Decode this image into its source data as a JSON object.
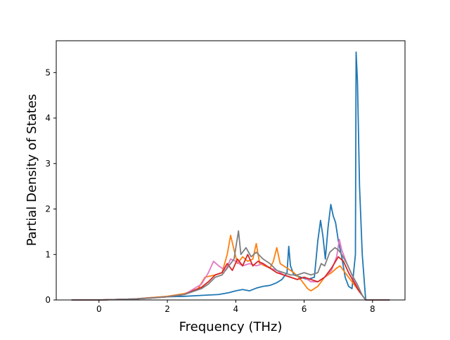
{
  "chart_data": {
    "type": "line",
    "title": "",
    "xlabel": "Frequency (THz)",
    "ylabel": "Partial Density of States",
    "xlim": [
      -1.25,
      8.95
    ],
    "ylim": [
      0,
      5.7
    ],
    "x_ticks": [
      0,
      2,
      4,
      6,
      8
    ],
    "y_ticks": [
      0,
      1,
      2,
      3,
      4,
      5
    ],
    "x_tick_labels": [
      "0",
      "2",
      "4",
      "6",
      "8"
    ],
    "y_tick_labels": [
      "0",
      "1",
      "2",
      "3",
      "4",
      "5"
    ],
    "grid": false,
    "legend": "none",
    "series": [
      {
        "color": "#1f77b4",
        "points": [
          [
            -0.8,
            0
          ],
          [
            0,
            0
          ],
          [
            1,
            0.02
          ],
          [
            1.5,
            0.05
          ],
          [
            2,
            0.07
          ],
          [
            2.5,
            0.08
          ],
          [
            3,
            0.1
          ],
          [
            3.5,
            0.12
          ],
          [
            3.8,
            0.16
          ],
          [
            4,
            0.2
          ],
          [
            4.2,
            0.23
          ],
          [
            4.4,
            0.2
          ],
          [
            4.6,
            0.26
          ],
          [
            4.8,
            0.3
          ],
          [
            5,
            0.32
          ],
          [
            5.2,
            0.38
          ],
          [
            5.35,
            0.45
          ],
          [
            5.5,
            0.6
          ],
          [
            5.55,
            1.18
          ],
          [
            5.6,
            0.75
          ],
          [
            5.7,
            0.55
          ],
          [
            5.9,
            0.5
          ],
          [
            6.1,
            0.45
          ],
          [
            6.3,
            0.5
          ],
          [
            6.4,
            1.3
          ],
          [
            6.48,
            1.75
          ],
          [
            6.55,
            1.4
          ],
          [
            6.62,
            0.9
          ],
          [
            6.7,
            1.6
          ],
          [
            6.78,
            2.1
          ],
          [
            6.85,
            1.85
          ],
          [
            6.92,
            1.7
          ],
          [
            7,
            1.3
          ],
          [
            7.1,
            0.95
          ],
          [
            7.2,
            0.5
          ],
          [
            7.3,
            0.3
          ],
          [
            7.4,
            0.25
          ],
          [
            7.5,
            1.0
          ],
          [
            7.52,
            5.45
          ],
          [
            7.56,
            4.8
          ],
          [
            7.62,
            2.5
          ],
          [
            7.7,
            1.0
          ],
          [
            7.8,
            0
          ],
          [
            8.5,
            0
          ]
        ]
      },
      {
        "color": "#ff7f0e",
        "points": [
          [
            -0.8,
            0
          ],
          [
            0,
            0
          ],
          [
            1,
            0.02
          ],
          [
            1.5,
            0.05
          ],
          [
            2,
            0.08
          ],
          [
            2.5,
            0.14
          ],
          [
            2.9,
            0.25
          ],
          [
            3.1,
            0.5
          ],
          [
            3.4,
            0.55
          ],
          [
            3.6,
            0.6
          ],
          [
            3.75,
            1.0
          ],
          [
            3.85,
            1.42
          ],
          [
            3.95,
            1.1
          ],
          [
            4.05,
            0.8
          ],
          [
            4.2,
            0.95
          ],
          [
            4.35,
            0.85
          ],
          [
            4.5,
            0.9
          ],
          [
            4.6,
            1.24
          ],
          [
            4.7,
            0.8
          ],
          [
            4.85,
            0.75
          ],
          [
            5,
            0.7
          ],
          [
            5.1,
            0.85
          ],
          [
            5.2,
            1.15
          ],
          [
            5.3,
            0.8
          ],
          [
            5.5,
            0.7
          ],
          [
            5.7,
            0.6
          ],
          [
            5.9,
            0.45
          ],
          [
            6,
            0.35
          ],
          [
            6.1,
            0.25
          ],
          [
            6.2,
            0.2
          ],
          [
            6.4,
            0.3
          ],
          [
            6.6,
            0.5
          ],
          [
            6.8,
            0.6
          ],
          [
            6.95,
            0.7
          ],
          [
            7.05,
            0.75
          ],
          [
            7.2,
            0.6
          ],
          [
            7.35,
            0.45
          ],
          [
            7.5,
            0.3
          ],
          [
            7.6,
            0.2
          ],
          [
            7.8,
            0
          ],
          [
            8.5,
            0
          ]
        ]
      },
      {
        "color": "#e377c2",
        "points": [
          [
            -0.8,
            0
          ],
          [
            0,
            0
          ],
          [
            1,
            0.02
          ],
          [
            1.5,
            0.04
          ],
          [
            2,
            0.07
          ],
          [
            2.5,
            0.12
          ],
          [
            3,
            0.35
          ],
          [
            3.2,
            0.6
          ],
          [
            3.35,
            0.85
          ],
          [
            3.5,
            0.75
          ],
          [
            3.7,
            0.65
          ],
          [
            3.85,
            0.9
          ],
          [
            4,
            0.85
          ],
          [
            4.2,
            0.75
          ],
          [
            4.4,
            0.8
          ],
          [
            4.6,
            0.75
          ],
          [
            4.8,
            0.8
          ],
          [
            5,
            0.7
          ],
          [
            5.2,
            0.65
          ],
          [
            5.4,
            0.55
          ],
          [
            5.6,
            0.5
          ],
          [
            5.8,
            0.45
          ],
          [
            6,
            0.5
          ],
          [
            6.2,
            0.4
          ],
          [
            6.4,
            0.4
          ],
          [
            6.6,
            0.5
          ],
          [
            6.8,
            0.65
          ],
          [
            6.95,
            0.95
          ],
          [
            7.03,
            1.33
          ],
          [
            7.1,
            1.1
          ],
          [
            7.25,
            0.8
          ],
          [
            7.4,
            0.55
          ],
          [
            7.55,
            0.3
          ],
          [
            7.7,
            0.1
          ],
          [
            7.8,
            0
          ],
          [
            8.5,
            0
          ]
        ]
      },
      {
        "color": "#d62728",
        "points": [
          [
            -0.8,
            0
          ],
          [
            0,
            0
          ],
          [
            1,
            0.02
          ],
          [
            1.5,
            0.04
          ],
          [
            2,
            0.07
          ],
          [
            2.5,
            0.12
          ],
          [
            3,
            0.28
          ],
          [
            3.2,
            0.4
          ],
          [
            3.4,
            0.55
          ],
          [
            3.6,
            0.6
          ],
          [
            3.75,
            0.8
          ],
          [
            3.9,
            0.65
          ],
          [
            4.05,
            0.9
          ],
          [
            4.2,
            0.75
          ],
          [
            4.35,
            1.0
          ],
          [
            4.5,
            0.75
          ],
          [
            4.65,
            0.85
          ],
          [
            4.8,
            0.8
          ],
          [
            5,
            0.7
          ],
          [
            5.2,
            0.6
          ],
          [
            5.4,
            0.55
          ],
          [
            5.6,
            0.5
          ],
          [
            5.8,
            0.45
          ],
          [
            6,
            0.5
          ],
          [
            6.2,
            0.45
          ],
          [
            6.4,
            0.4
          ],
          [
            6.6,
            0.5
          ],
          [
            6.8,
            0.7
          ],
          [
            7,
            0.95
          ],
          [
            7.15,
            0.85
          ],
          [
            7.3,
            0.6
          ],
          [
            7.45,
            0.4
          ],
          [
            7.6,
            0.2
          ],
          [
            7.75,
            0.05
          ],
          [
            7.8,
            0
          ],
          [
            8.5,
            0
          ]
        ]
      },
      {
        "color": "#7f7f7f",
        "points": [
          [
            -0.8,
            0
          ],
          [
            0,
            0
          ],
          [
            1,
            0.02
          ],
          [
            1.5,
            0.04
          ],
          [
            2,
            0.07
          ],
          [
            2.5,
            0.12
          ],
          [
            3,
            0.25
          ],
          [
            3.2,
            0.35
          ],
          [
            3.4,
            0.5
          ],
          [
            3.6,
            0.55
          ],
          [
            3.8,
            0.75
          ],
          [
            3.95,
            0.9
          ],
          [
            4.08,
            1.52
          ],
          [
            4.15,
            1.0
          ],
          [
            4.3,
            1.15
          ],
          [
            4.45,
            0.95
          ],
          [
            4.6,
            1.05
          ],
          [
            4.8,
            0.9
          ],
          [
            5,
            0.8
          ],
          [
            5.2,
            0.65
          ],
          [
            5.4,
            0.6
          ],
          [
            5.6,
            0.55
          ],
          [
            5.8,
            0.55
          ],
          [
            6,
            0.6
          ],
          [
            6.2,
            0.55
          ],
          [
            6.4,
            0.6
          ],
          [
            6.5,
            0.8
          ],
          [
            6.6,
            0.75
          ],
          [
            6.75,
            1.05
          ],
          [
            6.9,
            1.15
          ],
          [
            7,
            1.1
          ],
          [
            7.1,
            1.0
          ],
          [
            7.25,
            0.8
          ],
          [
            7.4,
            0.55
          ],
          [
            7.55,
            0.35
          ],
          [
            7.7,
            0.1
          ],
          [
            7.8,
            0
          ],
          [
            8.5,
            0
          ]
        ]
      }
    ]
  }
}
